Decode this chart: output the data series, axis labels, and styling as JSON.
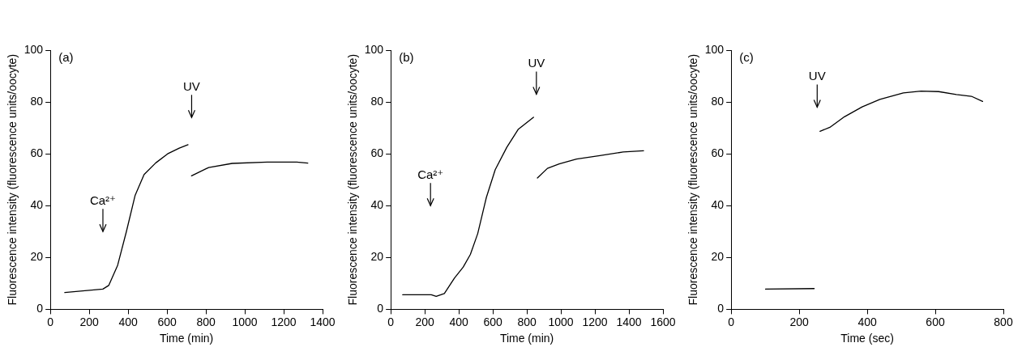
{
  "chart_data": [
    {
      "type": "line",
      "xlabel": "Time (min)",
      "ylabel": "Fluorescence intensity (fluorescence units/oocyte)",
      "xlim": [
        0,
        1400
      ],
      "xticks": [
        0,
        200,
        400,
        600,
        800,
        1000,
        1200,
        1400
      ],
      "ylim": [
        0,
        100
      ],
      "yticks": [
        0,
        20,
        40,
        60,
        80,
        100
      ],
      "marker": "none",
      "line_style": "solid",
      "series": [
        {
          "color": "#000000",
          "x": [
            74,
            270,
            300,
            346,
            391,
            436,
            482,
            542,
            603,
            663,
            708
          ],
          "values": [
            6.5,
            7.8,
            9.2,
            17,
            30,
            44,
            52,
            56.5,
            60,
            62.2,
            63.5
          ]
        },
        {
          "color": "#000000",
          "x": [
            726,
            814,
            935,
            1116,
            1267,
            1324
          ],
          "values": [
            51.5,
            54.7,
            56.3,
            56.8,
            56.8,
            56.4
          ]
        }
      ],
      "annotations": [
        "(a)",
        "Ca²⁺",
        "UV"
      ]
    },
    {
      "type": "line",
      "xlabel": "Time (min)",
      "ylabel": "Fluorescence intensity (fluorescence units/oocyte)",
      "xlim": [
        0,
        1600
      ],
      "xticks": [
        0,
        200,
        400,
        600,
        800,
        1000,
        1200,
        1400,
        1600
      ],
      "ylim": [
        0,
        100
      ],
      "yticks": [
        0,
        20,
        40,
        60,
        80,
        100
      ],
      "marker": "none",
      "line_style": "solid",
      "series": [
        {
          "color": "#000000",
          "x": [
            70,
            238,
            267,
            315,
            374,
            426,
            468,
            511,
            562,
            614,
            682,
            750,
            839
          ],
          "values": [
            5.6,
            5.6,
            5.0,
            6.1,
            12,
            16.3,
            21.2,
            29.2,
            43.2,
            53.9,
            62.5,
            69.5,
            74.1
          ]
        },
        {
          "color": "#000000",
          "x": [
            862,
            921,
            990,
            1092,
            1229,
            1366,
            1486
          ],
          "values": [
            50.7,
            54.4,
            56.1,
            58,
            59.3,
            60.7,
            61.2
          ]
        }
      ],
      "annotations": [
        "(b)",
        "Ca²⁺",
        "UV"
      ]
    },
    {
      "type": "line",
      "xlabel": "Time (sec)",
      "ylabel": "Fluorescence intensity (fluorescence units/oocyte)",
      "xlim": [
        0,
        800
      ],
      "xticks": [
        0,
        200,
        400,
        600,
        800
      ],
      "ylim": [
        0,
        100
      ],
      "yticks": [
        0,
        20,
        40,
        60,
        80,
        100
      ],
      "marker": "none",
      "line_style": "solid",
      "series": [
        {
          "color": "#000000",
          "x": [
            101,
            244
          ],
          "values": [
            7.8,
            8
          ]
        },
        {
          "color": "#000000",
          "x": [
            261,
            290,
            333,
            385,
            437,
            506,
            558,
            610,
            662,
            706,
            739
          ],
          "values": [
            68.7,
            70.2,
            74.3,
            78.1,
            81,
            83.5,
            84.2,
            84,
            82.9,
            82.2,
            80.2
          ]
        }
      ],
      "annotations": [
        "(c)",
        "UV"
      ]
    }
  ]
}
